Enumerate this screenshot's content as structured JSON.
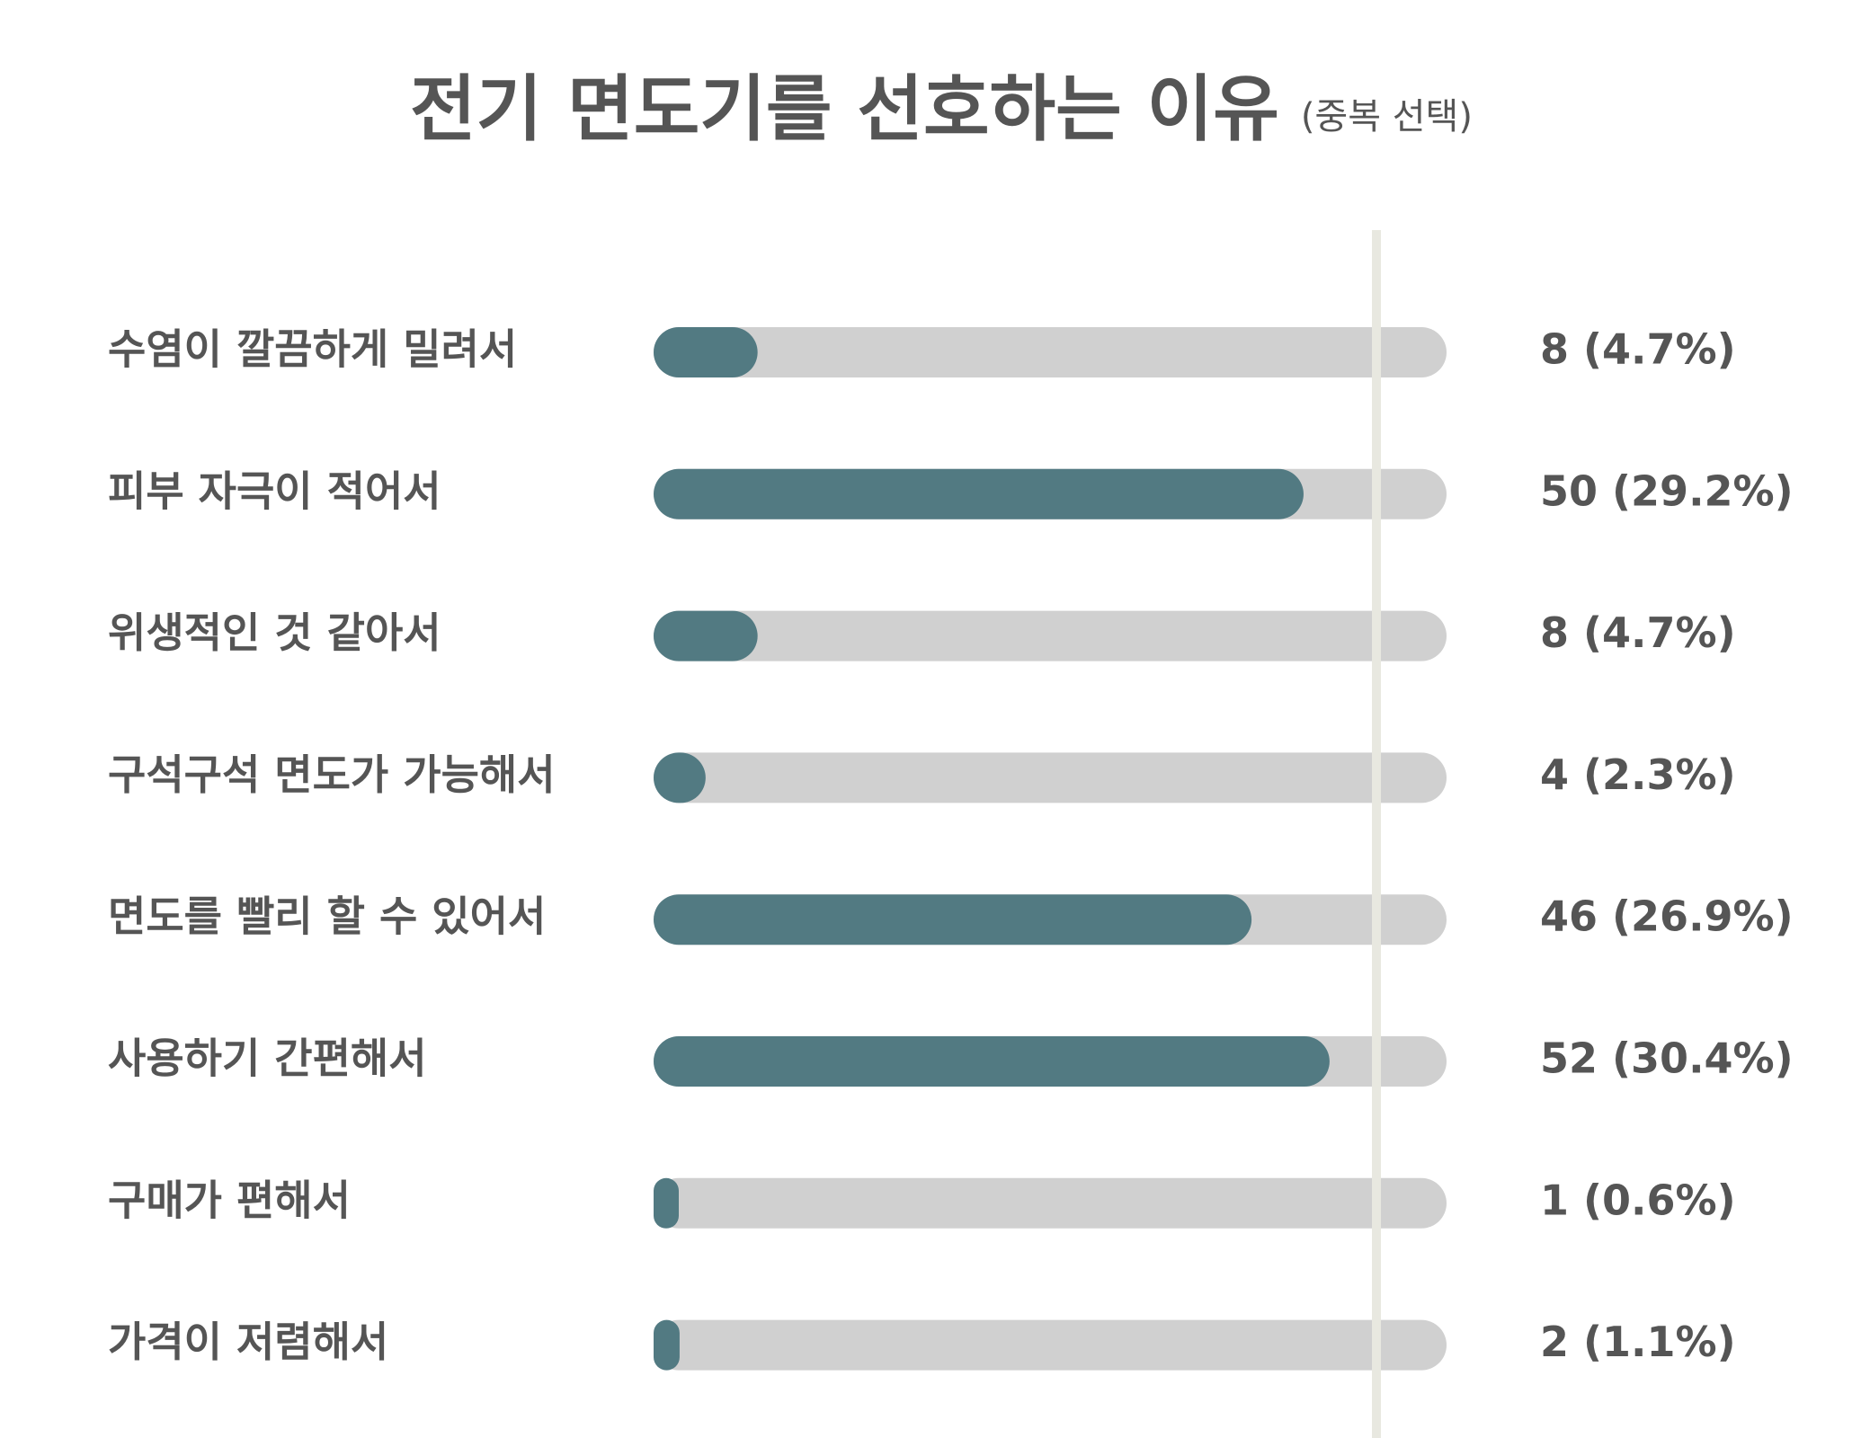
{
  "chart_data": {
    "type": "bar",
    "orientation": "horizontal",
    "title": "전기 면도기를 선호하는 이유",
    "subtitle": "(중복 선택)",
    "categories": [
      "수염이 깔끔하게 밀려서",
      "피부 자극이 적어서",
      "위생적인 것 같아서",
      "구석구석 면도가 가능해서",
      "면도를 빨리 할 수 있어서",
      "사용하기 간편해서",
      "구매가 편해서",
      "가격이 저렴해서"
    ],
    "values": [
      8,
      50,
      8,
      4,
      46,
      52,
      1,
      2
    ],
    "value_labels": [
      "8 (4.7%)",
      "50 (29.2%)",
      "8 (4.7%)",
      "4 (2.3%)",
      "46 (26.9%)",
      "52 (30.4%)",
      "1 (0.6%)",
      "2 (1.1%)"
    ],
    "color": "#527a82",
    "track_color": "#d0d0d0",
    "xlim": [
      0,
      61
    ]
  }
}
